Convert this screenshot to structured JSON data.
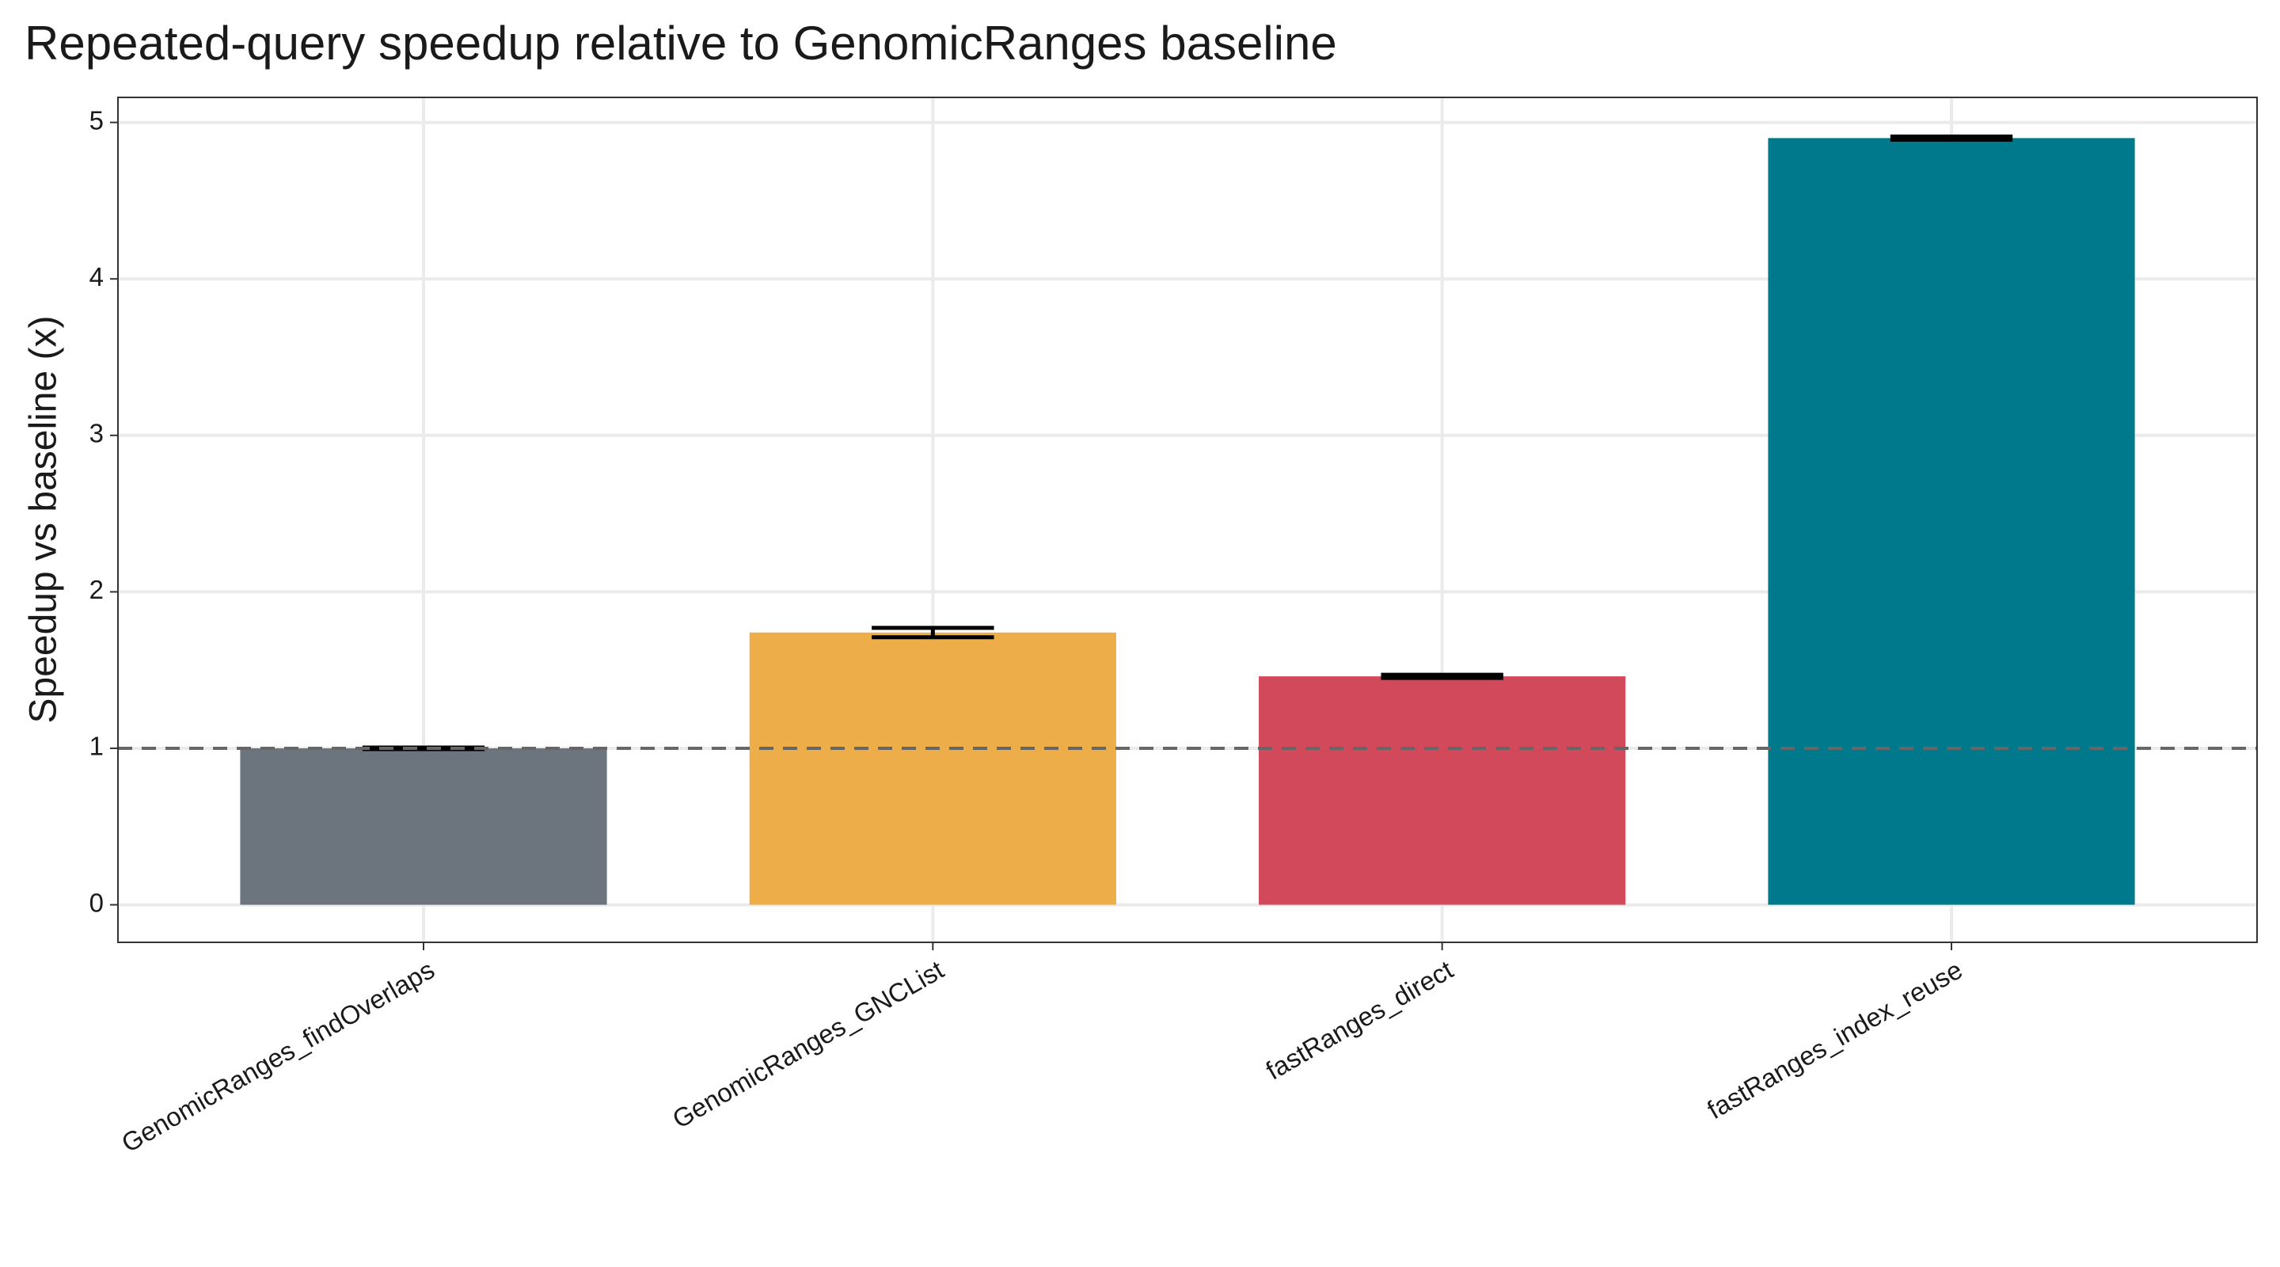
{
  "chart_data": {
    "type": "bar",
    "title": "Repeated-query speedup relative to GenomicRanges baseline",
    "y_label": "Speedup vs baseline (x)",
    "categories": [
      "GenomicRanges_findOverlaps",
      "GenomicRanges_GNCList",
      "fastRanges_direct",
      "fastRanges_index_reuse"
    ],
    "values": [
      1.0,
      1.74,
      1.46,
      4.9
    ],
    "errors": [
      0.005,
      0.03,
      0.01,
      0.01
    ],
    "colors": [
      "#6c757d",
      "#edae49",
      "#d1495b",
      "#00798c"
    ],
    "ylim": [
      -0.24,
      5.16
    ],
    "yticks": [
      0,
      1,
      2,
      3,
      4,
      5
    ],
    "grid": true,
    "reference_line": 1
  }
}
